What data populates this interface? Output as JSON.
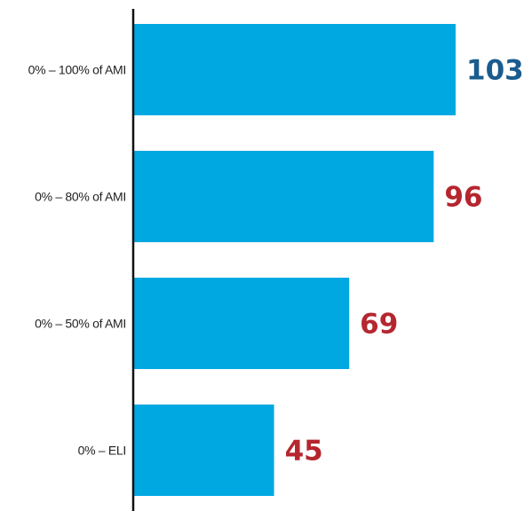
{
  "chart_data": {
    "type": "bar",
    "orientation": "horizontal",
    "categories": [
      "0% – 100% of AMI",
      "0% – 80% of AMI",
      "0% – 50% of AMI",
      "0% – ELI"
    ],
    "values": [
      103,
      96,
      69,
      45
    ],
    "xlim": [
      0,
      103
    ],
    "grid": false,
    "legend": "none"
  },
  "colors": {
    "bar": "#00a8e1",
    "axis": "#111111",
    "value_label_default": "#b5262f",
    "value_label_highlight": "#1a5c8e"
  },
  "highlight_index": 0
}
